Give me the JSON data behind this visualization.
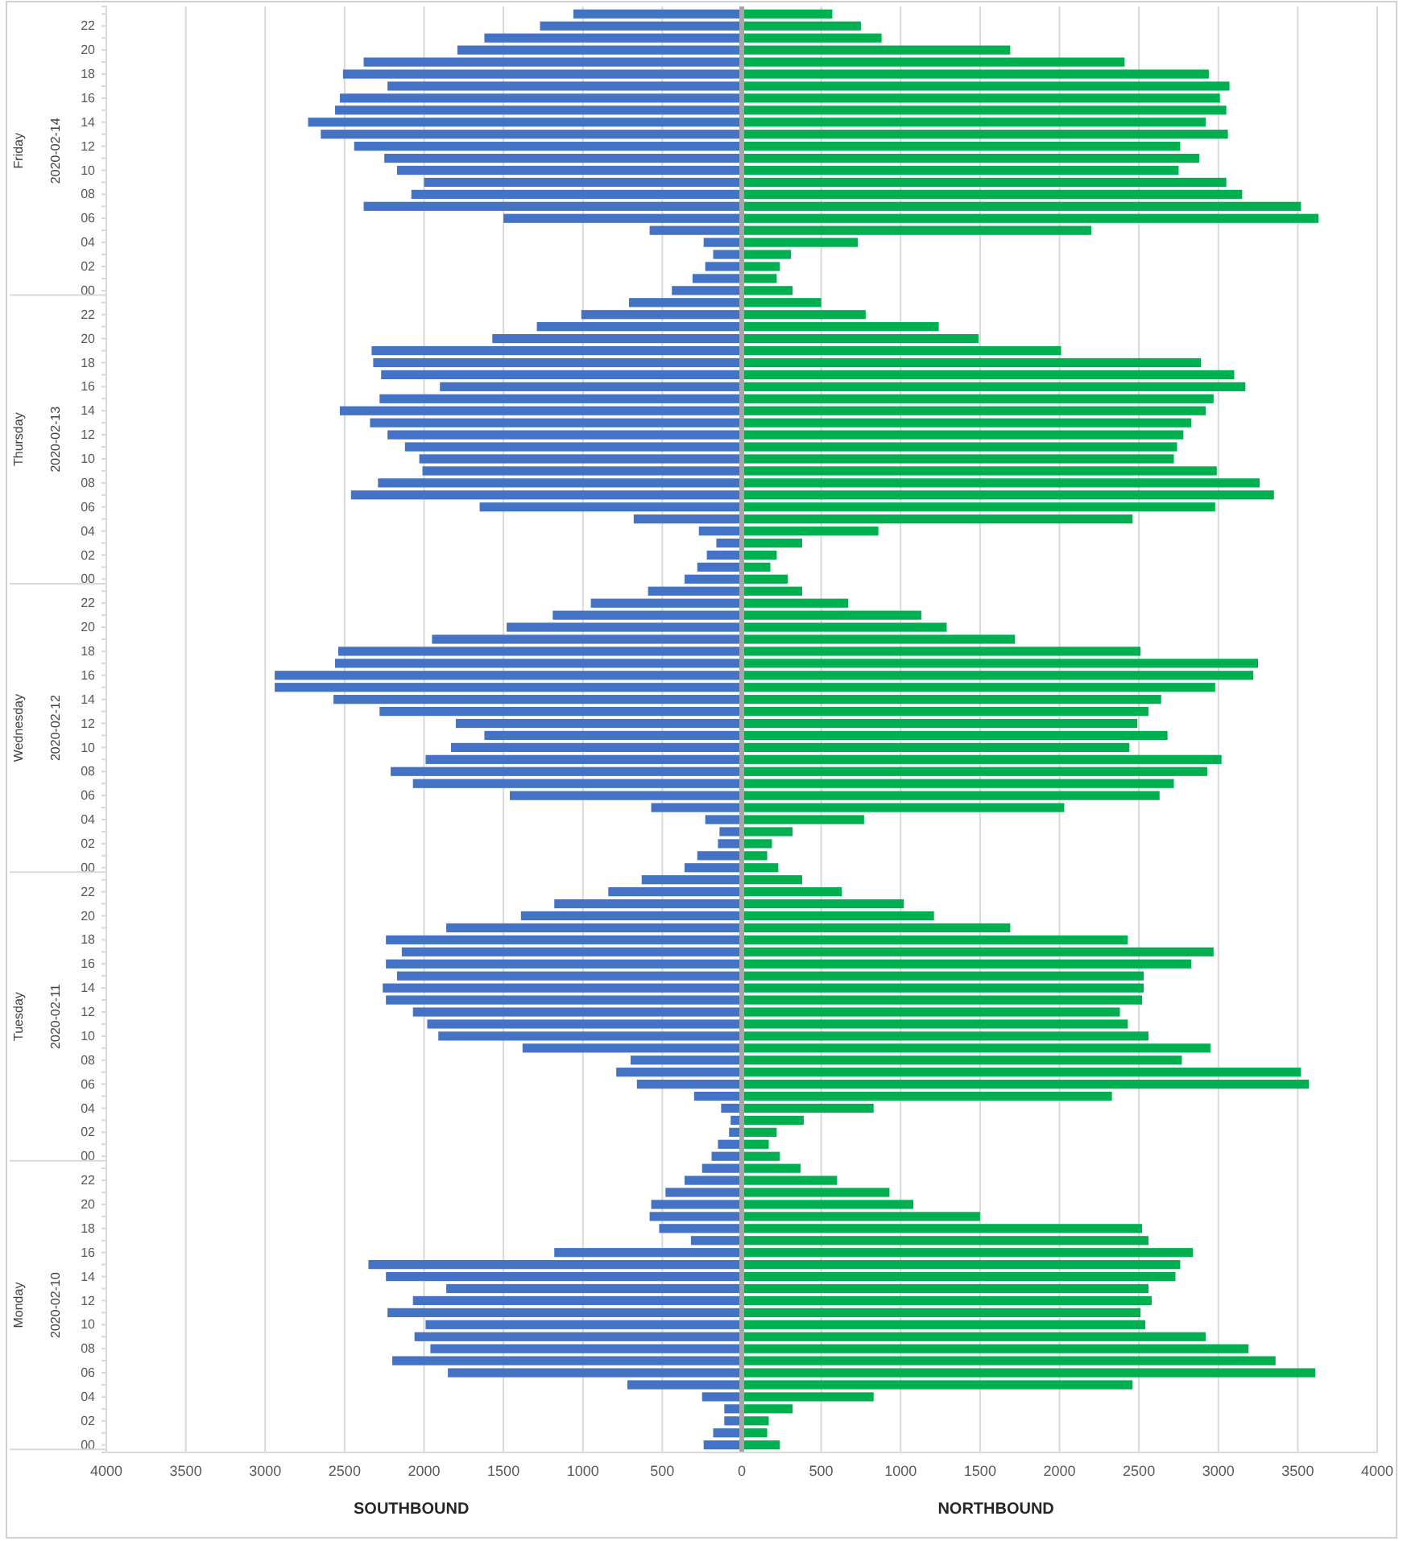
{
  "chart_data": {
    "type": "bar",
    "orientation": "horizontal",
    "stacked": true,
    "grid": "x",
    "categories": [
      null,
      "22",
      null,
      "20",
      null,
      "18",
      null,
      "16",
      null,
      "14",
      null,
      "12",
      null,
      "10",
      null,
      "08",
      null,
      "06",
      null,
      "04",
      null,
      "02",
      null,
      "00",
      null,
      "22",
      null,
      "20",
      null,
      "18",
      null,
      "16",
      null,
      "14",
      null,
      "12",
      null,
      "10",
      null,
      "08",
      null,
      "06",
      null,
      "04",
      null,
      "02",
      null,
      "00",
      null,
      "22",
      null,
      "20",
      null,
      "18",
      null,
      "16",
      null,
      "14",
      null,
      "12",
      null,
      "10",
      null,
      "08",
      null,
      "06",
      null,
      "04",
      null,
      "02",
      null,
      "00",
      null,
      "22",
      null,
      "20",
      null,
      "18",
      null,
      "16",
      null,
      "14",
      null,
      "12",
      null,
      "10",
      null,
      "08",
      null,
      "06",
      null,
      "04",
      null,
      "02",
      null,
      "00",
      null,
      "22",
      null,
      "20",
      null,
      "18",
      null,
      "16",
      null,
      "14",
      null,
      "12",
      null,
      "10",
      null,
      "08",
      null,
      "06",
      null,
      "04",
      null,
      "02",
      null,
      "00"
    ],
    "series": [
      {
        "color": "#4472c4",
        "values": [
          -1060,
          -1270,
          -1620,
          -1790,
          -2380,
          -2510,
          -2230,
          -2530,
          -2560,
          -2730,
          -2650,
          -2440,
          -2250,
          -2170,
          -2000,
          -2080,
          -2380,
          -1500,
          -580,
          -240,
          -180,
          -230,
          -310,
          -440,
          -710,
          -1010,
          -1290,
          -1570,
          -2330,
          -2320,
          -2270,
          -1900,
          -2280,
          -2530,
          -2340,
          -2230,
          -2120,
          -2030,
          -2010,
          -2290,
          -2460,
          -1650,
          -680,
          -270,
          -160,
          -220,
          -280,
          -360,
          -590,
          -950,
          -1190,
          -1480,
          -1950,
          -2540,
          -2560,
          -2940,
          -2940,
          -2570,
          -2280,
          -1800,
          -1620,
          -1830,
          -1990,
          -2210,
          -2070,
          -1460,
          -570,
          -230,
          -140,
          -150,
          -280,
          -360,
          -630,
          -840,
          -1180,
          -1390,
          -1860,
          -2240,
          -2140,
          -2240,
          -2170,
          -2260,
          -2240,
          -2070,
          -1980,
          -1910,
          -1380,
          -700,
          -790,
          -660,
          -300,
          -130,
          -70,
          -80,
          -150,
          -190,
          -250,
          -360,
          -480,
          -570,
          -580,
          -520,
          -320,
          -1180,
          -2350,
          -2240,
          -1860,
          -2070,
          -2230,
          -1990,
          -2060,
          -1960,
          -2200,
          -1850,
          -720,
          -250,
          -110,
          -110,
          -180,
          -240
        ]
      },
      {
        "color": "#00b050",
        "values": [
          570,
          750,
          880,
          1690,
          2410,
          2940,
          3070,
          3010,
          3050,
          2920,
          3060,
          2760,
          2880,
          2750,
          3050,
          3150,
          3520,
          3630,
          2200,
          730,
          310,
          240,
          220,
          320,
          500,
          780,
          1240,
          1490,
          2010,
          2890,
          3100,
          3170,
          2970,
          2920,
          2830,
          2780,
          2740,
          2720,
          2990,
          3260,
          3350,
          2980,
          2460,
          860,
          380,
          220,
          180,
          290,
          380,
          670,
          1130,
          1290,
          1720,
          2510,
          3250,
          3220,
          2980,
          2640,
          2560,
          2490,
          2680,
          2440,
          3020,
          2930,
          2720,
          2630,
          2030,
          770,
          320,
          190,
          160,
          230,
          380,
          630,
          1020,
          1210,
          1690,
          2430,
          2970,
          2830,
          2530,
          2530,
          2520,
          2380,
          2430,
          2560,
          2950,
          2770,
          3520,
          3570,
          2330,
          830,
          390,
          220,
          170,
          240,
          370,
          600,
          930,
          1080,
          1500,
          2520,
          2560,
          2840,
          2760,
          2730,
          2560,
          2580,
          2510,
          2540,
          2920,
          3190,
          3360,
          3610,
          2460,
          830,
          320,
          170,
          160,
          240
        ]
      }
    ],
    "xlim": [
      -4000,
      4000
    ],
    "xticks": [
      {
        "value": -4000,
        "label": "4000"
      },
      {
        "value": -3500,
        "label": "3500"
      },
      {
        "value": -3000,
        "label": "3000"
      },
      {
        "value": -2500,
        "label": "2500"
      },
      {
        "value": -2000,
        "label": "2000"
      },
      {
        "value": -1500,
        "label": "1500"
      },
      {
        "value": -1000,
        "label": "1000"
      },
      {
        "value": -500,
        "label": "500"
      },
      0,
      500,
      1000,
      1500,
      2000,
      2500,
      3000,
      3500,
      4000
    ],
    "annotations": [
      "Friday",
      "2020-02-14",
      "Thursday",
      "2020-02-13",
      "Wednesday",
      "2020-02-12",
      "Tuesday",
      "2020-02-11",
      "Monday",
      "2020-02-10",
      "SOUTHBOUND",
      "NORTHBOUND"
    ]
  }
}
